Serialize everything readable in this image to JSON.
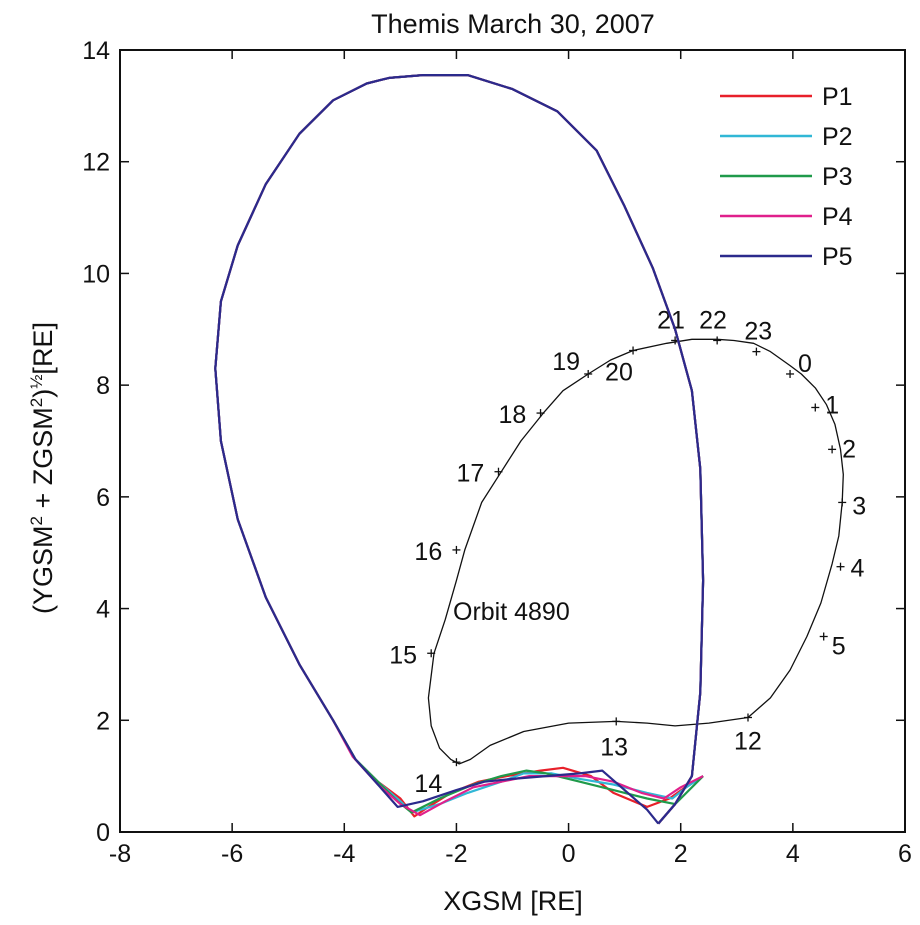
{
  "chart_data": {
    "type": "line",
    "title": "Themis  March 30, 2007",
    "xlabel": "XGSM [RE]",
    "ylabel_parts": [
      "(YGSM",
      "2",
      " + ZGSM",
      "2",
      ")",
      "½",
      "[RE]"
    ],
    "xlim": [
      -8,
      6
    ],
    "ylim": [
      0,
      14
    ],
    "xticks": [
      -8,
      -6,
      -4,
      -2,
      0,
      2,
      4,
      6
    ],
    "yticks": [
      0,
      2,
      4,
      6,
      8,
      10,
      12,
      14
    ],
    "xtick_labels": [
      "-8",
      "-6",
      "-4",
      "-2",
      "0",
      "2",
      "4",
      "6"
    ],
    "ytick_labels": [
      "0",
      "2",
      "4",
      "6",
      "8",
      "10",
      "12",
      "14"
    ],
    "grid": false,
    "legend_position": "top-right",
    "annotation": "Orbit 4890",
    "series": [
      {
        "name": "P1",
        "color": "#e8202a",
        "x": [
          1.6,
          1.9,
          2.2,
          2.35,
          2.4,
          2.35,
          2.2,
          1.9,
          1.5,
          1.0,
          0.5,
          -0.2,
          -1.0,
          -1.8,
          -2.6,
          -3.2,
          -3.6,
          -4.2,
          -4.8,
          -5.4,
          -5.9,
          -6.2,
          -6.3,
          -6.2,
          -5.9,
          -5.4,
          -4.8,
          -4.2,
          -3.8,
          -3.4,
          -3.0,
          -2.75,
          -2.5,
          -2.1,
          -1.6,
          -1.1,
          -0.5,
          -0.1,
          0.4,
          0.8,
          1.4,
          1.8,
          2.15,
          2.4
        ],
        "y": [
          0.15,
          0.5,
          1.0,
          2.5,
          4.5,
          6.5,
          7.9,
          9.0,
          10.1,
          11.2,
          12.2,
          12.9,
          13.3,
          13.55,
          13.55,
          13.5,
          13.4,
          13.1,
          12.5,
          11.6,
          10.5,
          9.5,
          8.3,
          7.0,
          5.6,
          4.2,
          3.0,
          2.0,
          1.3,
          0.9,
          0.6,
          0.28,
          0.45,
          0.7,
          0.9,
          1.0,
          1.1,
          1.15,
          1.0,
          0.7,
          0.45,
          0.6,
          0.85,
          1.0
        ]
      },
      {
        "name": "P2",
        "color": "#31b7d6",
        "x": [
          1.6,
          1.9,
          2.2,
          2.35,
          2.4,
          2.35,
          2.2,
          1.9,
          1.5,
          1.0,
          0.5,
          -0.2,
          -1.0,
          -1.8,
          -2.6,
          -3.2,
          -3.6,
          -4.2,
          -4.8,
          -5.4,
          -5.9,
          -6.2,
          -6.3,
          -6.2,
          -5.9,
          -5.4,
          -4.8,
          -4.2,
          -3.8,
          -3.4,
          -3.0,
          -2.8,
          -2.3,
          -1.8,
          -1.2,
          -0.8,
          -0.3,
          0.2,
          0.8,
          1.4,
          1.85,
          2.1,
          2.4
        ],
        "y": [
          0.15,
          0.5,
          1.0,
          2.5,
          4.5,
          6.5,
          7.9,
          9.0,
          10.1,
          11.2,
          12.2,
          12.9,
          13.3,
          13.55,
          13.55,
          13.5,
          13.4,
          13.1,
          12.5,
          11.6,
          10.5,
          9.5,
          8.3,
          7.0,
          5.6,
          4.2,
          3.0,
          2.0,
          1.3,
          0.9,
          0.55,
          0.35,
          0.5,
          0.7,
          0.9,
          1.05,
          1.05,
          0.95,
          0.85,
          0.7,
          0.6,
          0.8,
          1.0
        ]
      },
      {
        "name": "P3",
        "color": "#1f9a4a",
        "x": [
          1.6,
          1.9,
          2.2,
          2.35,
          2.4,
          2.35,
          2.2,
          1.9,
          1.5,
          1.0,
          0.5,
          -0.2,
          -1.0,
          -1.8,
          -2.6,
          -3.2,
          -3.6,
          -4.2,
          -4.8,
          -5.4,
          -5.9,
          -6.2,
          -6.3,
          -6.2,
          -5.9,
          -5.4,
          -4.8,
          -4.2,
          -3.8,
          -3.4,
          -3.05,
          -2.8,
          -2.3,
          -1.7,
          -1.2,
          -0.75,
          -0.4,
          0.2,
          0.8,
          1.4,
          1.9,
          2.15,
          2.4
        ],
        "y": [
          0.15,
          0.5,
          1.0,
          2.5,
          4.5,
          6.5,
          7.9,
          9.0,
          10.1,
          11.2,
          12.2,
          12.9,
          13.3,
          13.55,
          13.55,
          13.5,
          13.4,
          13.1,
          12.5,
          11.6,
          10.5,
          9.5,
          8.3,
          7.0,
          5.6,
          4.2,
          3.0,
          2.0,
          1.3,
          0.9,
          0.55,
          0.35,
          0.6,
          0.85,
          1.0,
          1.1,
          1.05,
          0.9,
          0.75,
          0.6,
          0.5,
          0.75,
          1.0
        ]
      },
      {
        "name": "P4",
        "color": "#e0208c",
        "x": [
          1.6,
          1.9,
          2.2,
          2.35,
          2.4,
          2.35,
          2.2,
          1.9,
          1.5,
          1.0,
          0.5,
          -0.2,
          -1.0,
          -1.8,
          -2.6,
          -3.2,
          -3.6,
          -4.2,
          -4.8,
          -5.4,
          -5.9,
          -6.2,
          -6.3,
          -6.2,
          -5.9,
          -5.4,
          -4.8,
          -4.2,
          -3.85,
          -3.4,
          -3.0,
          -2.65,
          -2.2,
          -1.7,
          -1.2,
          -0.7,
          -0.2,
          0.3,
          0.8,
          1.3,
          1.7,
          2.0,
          2.4
        ],
        "y": [
          0.15,
          0.5,
          1.0,
          2.5,
          4.5,
          6.5,
          7.9,
          9.0,
          10.1,
          11.2,
          12.2,
          12.9,
          13.3,
          13.55,
          13.55,
          13.5,
          13.4,
          13.1,
          12.5,
          11.6,
          10.5,
          9.5,
          8.3,
          7.0,
          5.6,
          4.2,
          3.0,
          2.0,
          1.35,
          0.85,
          0.5,
          0.3,
          0.55,
          0.8,
          0.9,
          1.0,
          1.0,
          1.0,
          0.9,
          0.7,
          0.6,
          0.8,
          1.0
        ]
      },
      {
        "name": "P5",
        "color": "#2b2a8c",
        "x": [
          1.6,
          1.9,
          2.2,
          2.35,
          2.4,
          2.35,
          2.2,
          1.9,
          1.5,
          1.0,
          0.5,
          -0.2,
          -1.0,
          -1.8,
          -2.6,
          -3.2,
          -3.6,
          -4.2,
          -4.8,
          -5.4,
          -5.9,
          -6.2,
          -6.3,
          -6.2,
          -5.9,
          -5.4,
          -4.8,
          -4.2,
          -3.8,
          -3.4,
          -3.05,
          -2.6,
          -2.0,
          -1.5,
          -1.0,
          -0.4,
          0.2,
          0.6,
          1.0,
          1.4,
          1.6
        ],
        "y": [
          0.15,
          0.5,
          1.0,
          2.5,
          4.5,
          6.5,
          7.9,
          9.0,
          10.1,
          11.2,
          12.2,
          12.9,
          13.3,
          13.55,
          13.55,
          13.5,
          13.4,
          13.1,
          12.5,
          11.6,
          10.5,
          9.5,
          8.3,
          7.0,
          5.6,
          4.2,
          3.0,
          2.0,
          1.3,
          0.85,
          0.45,
          0.55,
          0.75,
          0.9,
          0.95,
          1.0,
          1.05,
          1.1,
          0.75,
          0.4,
          0.15
        ]
      }
    ],
    "orbit": {
      "name": "Orbit 4890",
      "color": "#111111",
      "x": [
        3.2,
        3.6,
        3.95,
        4.25,
        4.5,
        4.7,
        4.82,
        4.88,
        4.9,
        4.85,
        4.75,
        4.6,
        4.4,
        4.15,
        3.95,
        3.6,
        3.3,
        2.95,
        2.65,
        2.2,
        1.75,
        1.15,
        0.75,
        0.35,
        -0.1,
        -0.45,
        -0.85,
        -1.2,
        -1.55,
        -1.85,
        -2.0,
        -2.2,
        -2.4,
        -2.5,
        -2.45,
        -2.3,
        -2.1,
        -1.95,
        -1.75,
        -1.4,
        -0.8,
        0.0,
        0.85,
        1.4,
        1.9,
        2.5,
        3.2
      ],
      "y": [
        2.05,
        2.4,
        2.9,
        3.5,
        4.1,
        4.8,
        5.3,
        5.9,
        6.4,
        6.85,
        7.3,
        7.65,
        7.95,
        8.2,
        8.35,
        8.6,
        8.75,
        8.8,
        8.82,
        8.82,
        8.75,
        8.62,
        8.45,
        8.2,
        7.9,
        7.5,
        7.0,
        6.45,
        5.9,
        5.05,
        4.5,
        3.8,
        3.2,
        2.4,
        1.9,
        1.5,
        1.3,
        1.22,
        1.3,
        1.55,
        1.8,
        1.95,
        1.98,
        1.95,
        1.9,
        1.95,
        2.05
      ]
    },
    "hour_marks": [
      {
        "label": "21",
        "x": 1.9,
        "y": 8.8
      },
      {
        "label": "22",
        "x": 2.65,
        "y": 8.8
      },
      {
        "label": "23",
        "x": 3.35,
        "y": 8.6
      },
      {
        "label": "0",
        "x": 3.95,
        "y": 8.2
      },
      {
        "label": "1",
        "x": 4.4,
        "y": 7.6
      },
      {
        "label": "2",
        "x": 4.7,
        "y": 6.85
      },
      {
        "label": "3",
        "x": 4.88,
        "y": 5.9
      },
      {
        "label": "4",
        "x": 4.85,
        "y": 4.75
      },
      {
        "label": "5",
        "x": 4.55,
        "y": 3.5
      },
      {
        "label": "12",
        "x": 3.2,
        "y": 2.05
      },
      {
        "label": "13",
        "x": 0.85,
        "y": 1.98
      },
      {
        "label": "14",
        "x": -2.0,
        "y": 1.25
      },
      {
        "label": "15",
        "x": -2.45,
        "y": 3.2
      },
      {
        "label": "16",
        "x": -2.0,
        "y": 5.05
      },
      {
        "label": "17",
        "x": -1.25,
        "y": 6.45
      },
      {
        "label": "18",
        "x": -0.5,
        "y": 7.5
      },
      {
        "label": "19",
        "x": 0.35,
        "y": 8.2
      },
      {
        "label": "20",
        "x": 1.15,
        "y": 8.62
      }
    ]
  }
}
